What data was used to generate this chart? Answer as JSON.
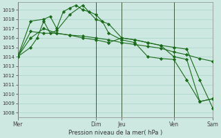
{
  "bg_color": "#cce8e0",
  "grid_color": "#9ecdc4",
  "line_color": "#1a6b1a",
  "xlabel_text": "Pression niveau de la mer( hPa )",
  "xlabels": [
    "Mer",
    "Dim",
    "Jeu",
    "Ven",
    "Sam"
  ],
  "xtick_positions": [
    0,
    12,
    16,
    24,
    30
  ],
  "vline_positions": [
    0,
    12,
    16,
    24,
    30
  ],
  "ylim": [
    1007.5,
    1019.8
  ],
  "yticks": [
    1008,
    1009,
    1010,
    1011,
    1012,
    1013,
    1014,
    1015,
    1016,
    1017,
    1018,
    1019
  ],
  "series": [
    {
      "x": [
        0,
        2,
        4,
        6,
        8,
        10,
        12,
        14,
        16,
        18,
        20,
        22,
        24,
        26,
        28,
        30
      ],
      "y": [
        1014.0,
        1016.7,
        1016.5,
        1016.5,
        1016.3,
        1016.2,
        1016.0,
        1015.8,
        1015.5,
        1015.3,
        1015.1,
        1014.9,
        1014.5,
        1014.2,
        1013.8,
        1013.5
      ]
    },
    {
      "x": [
        0,
        2,
        4,
        5,
        6,
        7,
        8,
        9,
        10,
        11,
        12,
        13,
        14,
        16,
        18,
        20,
        22,
        24,
        26,
        28,
        30
      ],
      "y": [
        1014.0,
        1017.8,
        1018.0,
        1018.3,
        1017.0,
        1018.8,
        1019.2,
        1019.5,
        1019.0,
        1018.8,
        1018.5,
        1017.8,
        1016.5,
        1015.8,
        1015.5,
        1014.0,
        1013.8,
        1013.7,
        1011.5,
        1009.2,
        1009.5
      ]
    },
    {
      "x": [
        0,
        2,
        3,
        4,
        5,
        6,
        8,
        10,
        12,
        14,
        16,
        18,
        20,
        22,
        24,
        26,
        28,
        30
      ],
      "y": [
        1014.0,
        1015.0,
        1016.0,
        1017.8,
        1016.5,
        1016.8,
        1018.5,
        1019.5,
        1018.0,
        1017.5,
        1016.0,
        1015.8,
        1015.5,
        1015.2,
        1014.0,
        1013.7,
        1009.2,
        1009.5
      ]
    },
    {
      "x": [
        0,
        2,
        4,
        6,
        8,
        10,
        12,
        14,
        16,
        18,
        20,
        22,
        24,
        26,
        28,
        30
      ],
      "y": [
        1014.0,
        1016.0,
        1017.0,
        1016.5,
        1016.3,
        1016.0,
        1015.8,
        1015.5,
        1016.0,
        1015.8,
        1015.5,
        1015.2,
        1015.0,
        1014.8,
        1011.5,
        1008.5
      ]
    }
  ]
}
